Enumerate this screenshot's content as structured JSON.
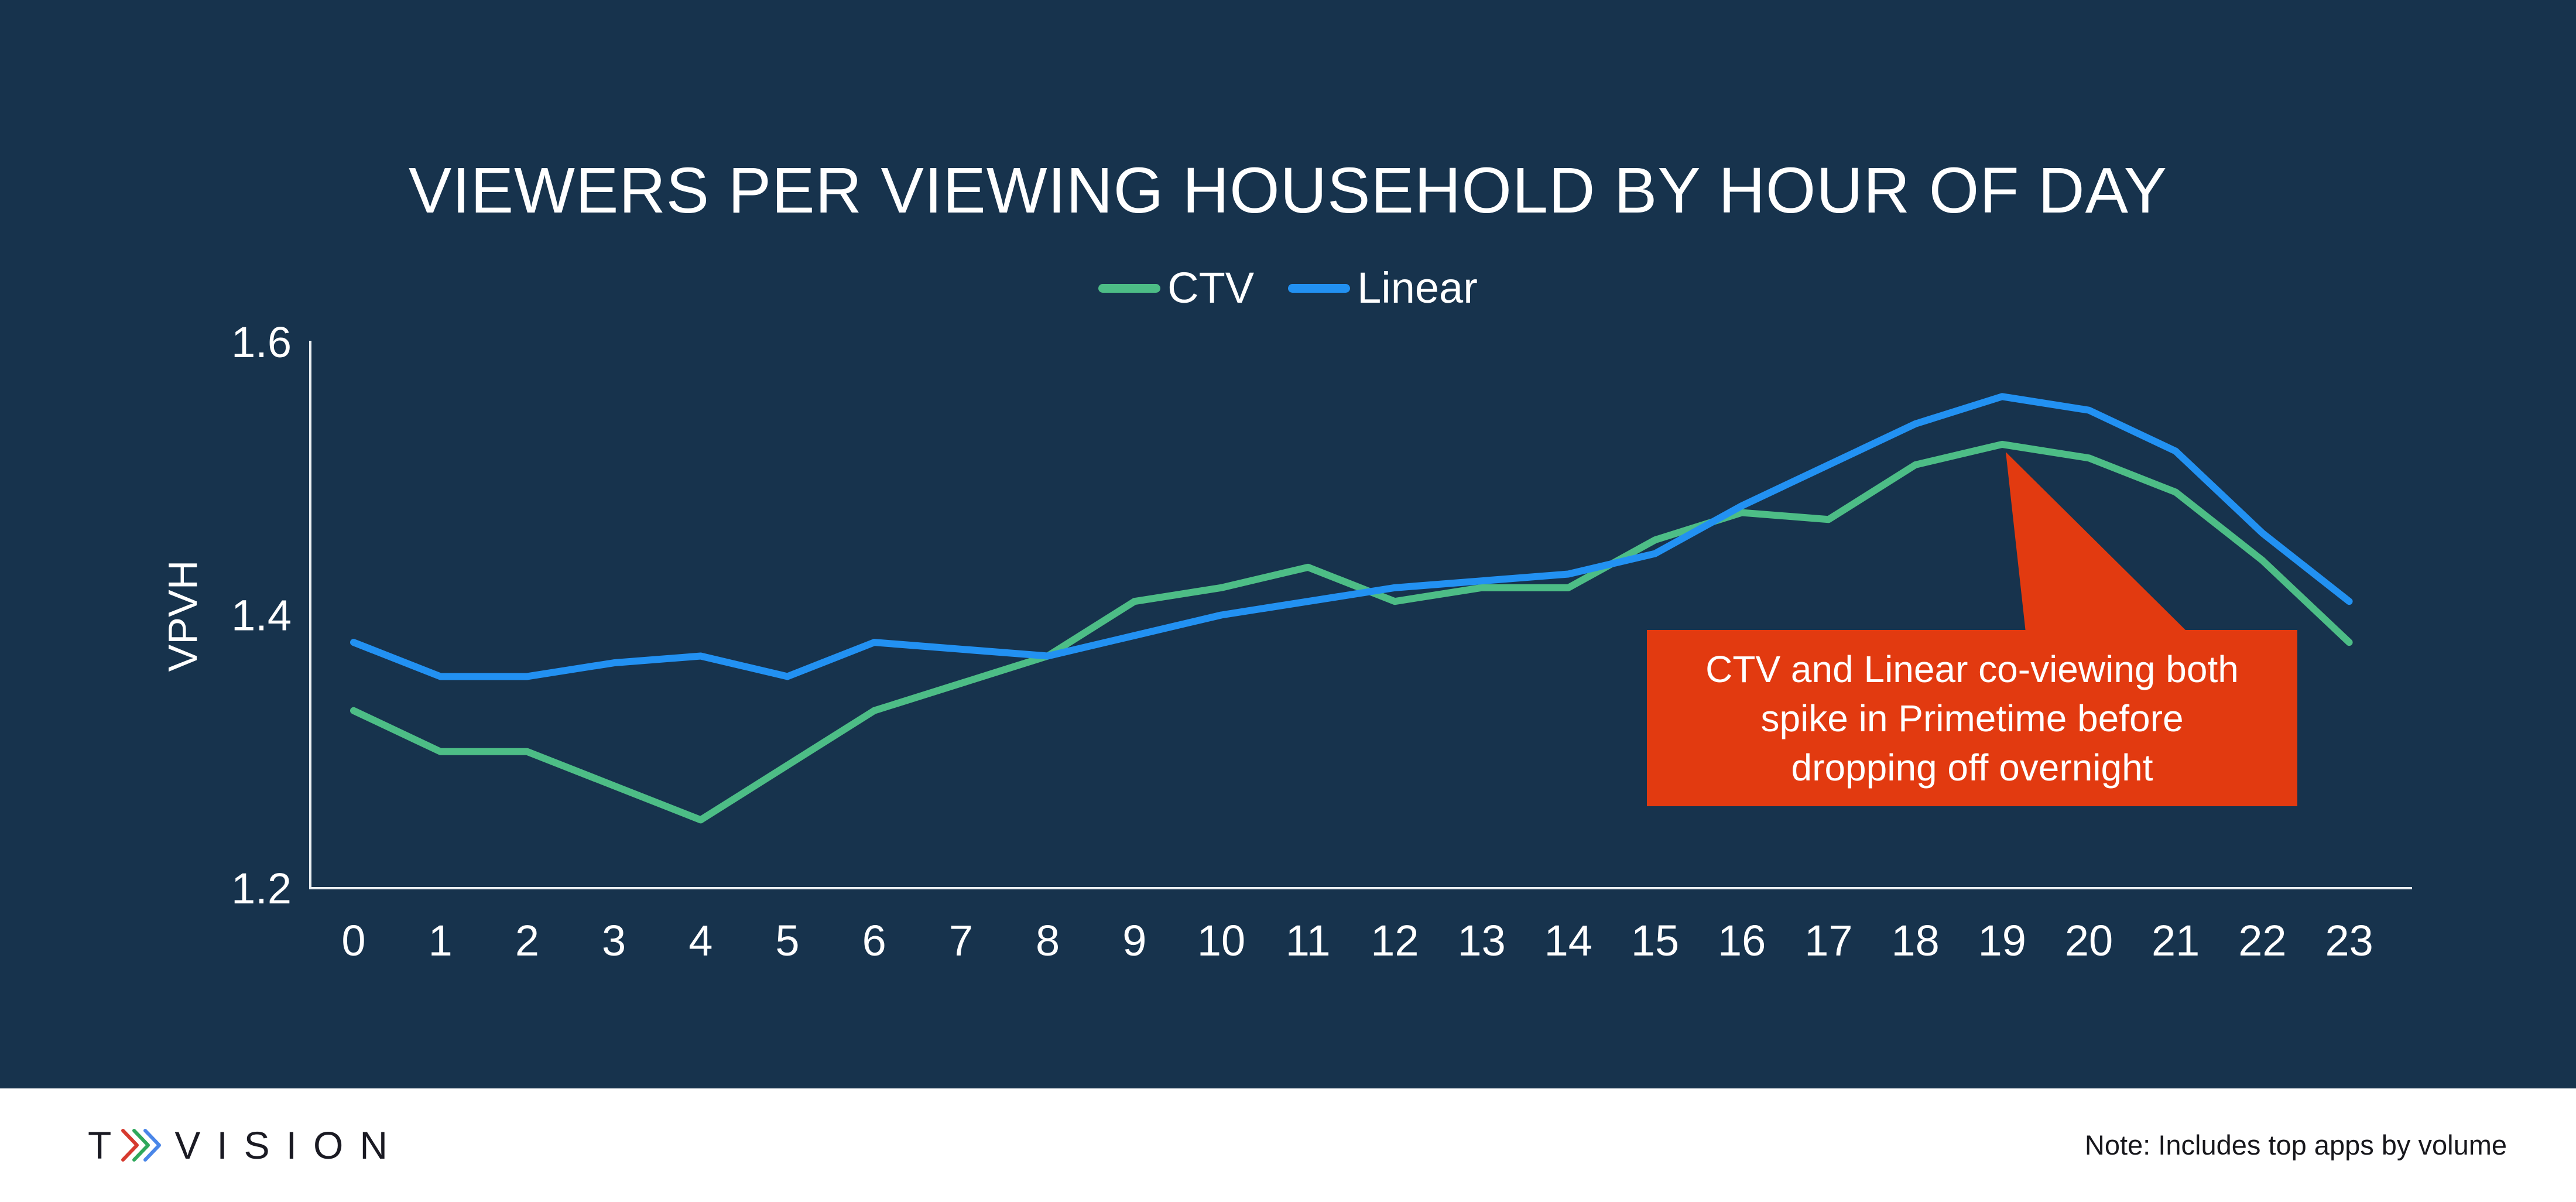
{
  "title": "VIEWERS PER VIEWING HOUSEHOLD BY HOUR OF DAY",
  "legend": [
    {
      "label": "CTV",
      "color": "#4DBD86"
    },
    {
      "label": "Linear",
      "color": "#2291F2"
    }
  ],
  "y_axis_label": "VPVH",
  "callout": {
    "lines": [
      "CTV and Linear co-viewing both",
      "spike in Primetime before",
      "dropping off overnight"
    ],
    "color": "#E23A10"
  },
  "footer": {
    "note": "Note: Includes top apps by volume",
    "logo_t": "T",
    "logo_vision": "VISION"
  },
  "colors": {
    "slide_background": "#17334D",
    "footer_background": "#FFFFFF",
    "axis_line": "#EAEEF1",
    "text": "#FFFFFF"
  },
  "chart_data": {
    "type": "line",
    "x": [
      0,
      1,
      2,
      3,
      4,
      5,
      6,
      7,
      8,
      9,
      10,
      11,
      12,
      13,
      14,
      15,
      16,
      17,
      18,
      19,
      20,
      21,
      22,
      23
    ],
    "series": [
      {
        "name": "CTV",
        "color": "#4DBD86",
        "values": [
          1.33,
          1.3,
          1.3,
          1.275,
          1.25,
          1.29,
          1.33,
          1.35,
          1.37,
          1.41,
          1.42,
          1.435,
          1.41,
          1.42,
          1.42,
          1.455,
          1.475,
          1.47,
          1.51,
          1.525,
          1.515,
          1.49,
          1.44,
          1.38
        ]
      },
      {
        "name": "Linear",
        "color": "#2291F2",
        "values": [
          1.38,
          1.355,
          1.355,
          1.365,
          1.37,
          1.355,
          1.38,
          1.375,
          1.37,
          1.385,
          1.4,
          1.41,
          1.42,
          1.425,
          1.43,
          1.445,
          1.48,
          1.51,
          1.54,
          1.56,
          1.55,
          1.52,
          1.46,
          1.41
        ]
      }
    ],
    "title": "VIEWERS PER VIEWING HOUSEHOLD BY HOUR OF DAY",
    "xlabel": "",
    "ylabel": "VPVH",
    "ylim": [
      1.2,
      1.6
    ],
    "yticks": [
      1.2,
      1.4,
      1.6
    ],
    "grid": false,
    "legend_position": "top",
    "annotation": "CTV and Linear co-viewing both spike in Primetime before dropping off overnight"
  }
}
